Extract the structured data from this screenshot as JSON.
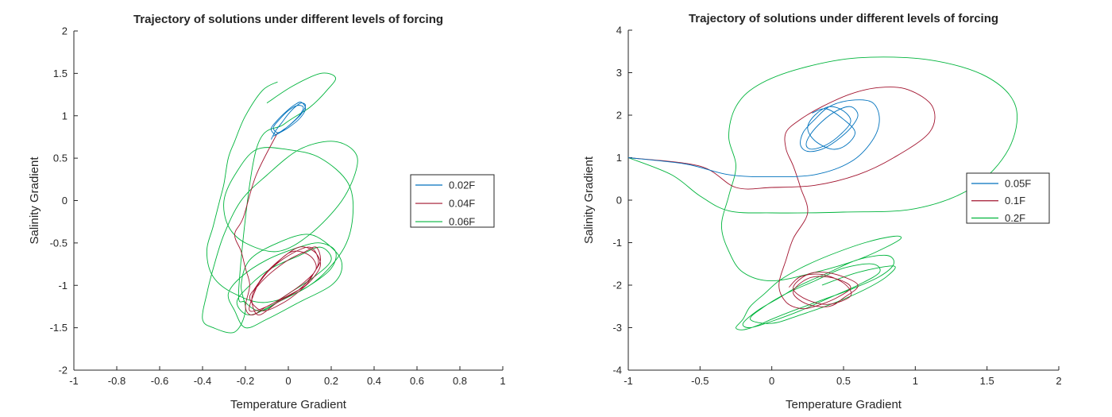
{
  "chart_data": [
    {
      "type": "line",
      "title": "Trajectory of solutions under different levels of forcing",
      "xlabel": "Temperature Gradient",
      "ylabel": "Salinity Gradient",
      "xlim": [
        -1,
        1
      ],
      "ylim": [
        -2,
        2
      ],
      "xticks": [
        -1,
        -0.8,
        -0.6,
        -0.4,
        -0.2,
        0,
        0.2,
        0.4,
        0.6,
        0.8,
        1
      ],
      "yticks": [
        -2,
        -1.5,
        -1,
        -0.5,
        0,
        0.5,
        1,
        1.5,
        2
      ],
      "grid": false,
      "legend_position": "right",
      "series": [
        {
          "name": "0.02F",
          "color": "#0072BD",
          "x": [
            -0.08,
            -0.06,
            -0.03,
            0.0,
            0.03,
            0.06,
            0.08,
            0.06,
            0.02,
            -0.02,
            -0.05,
            -0.07,
            -0.04,
            0.0,
            0.04,
            0.07,
            0.05,
            0.01,
            -0.03,
            -0.06,
            -0.08,
            -0.05,
            -0.01,
            0.03,
            0.06,
            0.08,
            0.05,
            0.0,
            -0.04,
            -0.07
          ],
          "y": [
            0.72,
            0.82,
            0.92,
            1.02,
            1.1,
            1.15,
            1.12,
            1.02,
            0.92,
            0.84,
            0.8,
            0.86,
            0.96,
            1.06,
            1.12,
            1.1,
            1.0,
            0.9,
            0.82,
            0.78,
            0.85,
            0.95,
            1.05,
            1.13,
            1.16,
            1.08,
            0.96,
            0.86,
            0.8,
            0.76
          ]
        },
        {
          "name": "0.04F",
          "color": "#A2142F",
          "x": [
            -0.05,
            -0.15,
            -0.21,
            -0.25,
            -0.22,
            -0.2,
            -0.18,
            -0.2,
            -0.17,
            -0.1,
            0.0,
            0.08,
            0.12,
            0.15,
            0.13,
            0.08,
            0.0,
            -0.08,
            -0.14,
            -0.18,
            -0.12,
            -0.02,
            0.06,
            0.12,
            0.15,
            0.12,
            0.05,
            -0.04,
            -0.12,
            -0.16,
            -0.18,
            -0.1,
            0.0,
            0.08,
            0.13,
            0.1,
            0.02,
            -0.06,
            -0.13,
            -0.17,
            -0.14,
            -0.05,
            0.05,
            0.12,
            0.14,
            0.1,
            0.0,
            -0.1,
            -0.16
          ],
          "y": [
            0.8,
            0.3,
            -0.2,
            -0.4,
            -0.6,
            -0.8,
            -1.0,
            -1.25,
            -1.35,
            -1.25,
            -1.12,
            -1.0,
            -0.85,
            -0.7,
            -0.55,
            -0.6,
            -0.7,
            -0.85,
            -1.0,
            -1.15,
            -1.3,
            -1.2,
            -1.05,
            -0.9,
            -0.75,
            -0.6,
            -0.55,
            -0.7,
            -0.9,
            -1.1,
            -1.3,
            -1.25,
            -1.1,
            -0.95,
            -0.8,
            -0.65,
            -0.6,
            -0.75,
            -0.95,
            -1.15,
            -1.35,
            -1.2,
            -1.05,
            -0.85,
            -0.7,
            -0.55,
            -0.65,
            -0.85,
            -1.05
          ]
        },
        {
          "name": "0.06F",
          "color": "#00B43C",
          "x": [
            -0.05,
            -0.12,
            -0.2,
            -0.25,
            -0.28,
            -0.3,
            -0.32,
            -0.35,
            -0.38,
            -0.35,
            -0.25,
            -0.1,
            0.1,
            0.25,
            0.3,
            0.28,
            0.15,
            0.0,
            -0.15,
            -0.25,
            -0.3,
            -0.28,
            -0.2,
            -0.05,
            0.1,
            0.25,
            0.32,
            0.3,
            0.2,
            0.05,
            -0.1,
            -0.22,
            -0.3,
            -0.35,
            -0.38,
            -0.4,
            -0.35,
            -0.25,
            -0.2,
            -0.22,
            -0.18,
            -0.05,
            0.1,
            0.22,
            0.25,
            0.2,
            0.05,
            -0.1,
            -0.2,
            -0.25,
            -0.28,
            -0.22,
            -0.1,
            0.05,
            0.15,
            0.22,
            0.2,
            0.1,
            -0.05,
            -0.18,
            -0.24,
            -0.18,
            -0.08,
            0.05,
            0.15,
            0.2,
            0.12,
            0.0,
            -0.12,
            -0.2,
            -0.23,
            -0.15,
            -0.02,
            0.1,
            0.18,
            0.22,
            0.15,
            0.02,
            -0.1
          ],
          "y": [
            1.4,
            1.3,
            1.0,
            0.7,
            0.5,
            0.2,
            0.0,
            -0.3,
            -0.6,
            -0.9,
            -1.1,
            -1.2,
            -1.0,
            -0.6,
            -0.2,
            0.2,
            0.5,
            0.6,
            0.6,
            0.3,
            0.0,
            -0.3,
            -0.5,
            -0.6,
            -0.4,
            0.0,
            0.4,
            0.6,
            0.7,
            0.6,
            0.3,
            0.0,
            -0.4,
            -0.8,
            -1.1,
            -1.4,
            -1.5,
            -1.55,
            -1.3,
            -1.0,
            -0.7,
            -0.5,
            -0.4,
            -0.6,
            -0.8,
            -1.0,
            -1.2,
            -1.4,
            -1.5,
            -1.3,
            -1.1,
            -0.9,
            -0.7,
            -0.55,
            -0.5,
            -0.6,
            -0.8,
            -1.0,
            -1.2,
            -1.35,
            -1.2,
            -1.0,
            -0.8,
            -0.65,
            -0.55,
            -0.7,
            -0.9,
            -1.1,
            -1.3,
            -1.2,
            -1.0,
            0.6,
            0.9,
            1.1,
            1.3,
            1.45,
            1.5,
            1.35,
            1.15
          ]
        }
      ]
    },
    {
      "type": "line",
      "title": "Trajectory of solutions under different levels of forcing",
      "xlabel": "Temperature Gradient",
      "ylabel": "Salinity Gradient",
      "xlim": [
        -1,
        2
      ],
      "ylim": [
        -4,
        4
      ],
      "xticks": [
        -1,
        -0.5,
        0,
        0.5,
        1,
        1.5,
        2
      ],
      "yticks": [
        -4,
        -3,
        -2,
        -1,
        0,
        1,
        2,
        3,
        4
      ],
      "grid": false,
      "legend_position": "right",
      "series": [
        {
          "name": "0.05F",
          "color": "#0072BD",
          "x": [
            -1.0,
            -0.6,
            -0.3,
            0.0,
            0.3,
            0.55,
            0.7,
            0.75,
            0.7,
            0.55,
            0.4,
            0.3,
            0.22,
            0.2,
            0.25,
            0.35,
            0.45,
            0.55,
            0.6,
            0.55,
            0.45,
            0.35,
            0.27,
            0.24,
            0.28,
            0.38,
            0.48,
            0.55,
            0.5,
            0.4,
            0.3,
            0.25,
            0.3,
            0.42,
            0.52,
            0.58,
            0.5,
            0.38,
            0.28
          ],
          "y": [
            1.0,
            0.85,
            0.6,
            0.55,
            0.6,
            0.9,
            1.4,
            1.9,
            2.3,
            2.35,
            2.2,
            1.9,
            1.6,
            1.3,
            1.15,
            1.2,
            1.4,
            1.7,
            2.0,
            2.2,
            2.1,
            1.85,
            1.55,
            1.3,
            1.2,
            1.3,
            1.55,
            1.85,
            2.1,
            2.2,
            2.0,
            1.7,
            1.4,
            1.2,
            1.3,
            1.6,
            1.9,
            2.15,
            2.05
          ]
        },
        {
          "name": "0.1F",
          "color": "#A2142F",
          "x": [
            -1.0,
            -0.5,
            -0.25,
            0.0,
            0.3,
            0.6,
            0.85,
            1.1,
            1.12,
            0.95,
            0.75,
            0.55,
            0.35,
            0.2,
            0.1,
            0.1,
            0.15,
            0.2,
            0.25,
            0.15,
            0.1,
            0.05,
            0.1,
            0.2,
            0.3,
            0.45,
            0.55,
            0.45,
            0.3,
            0.2,
            0.15,
            0.25,
            0.4,
            0.5,
            0.6,
            0.45,
            0.3,
            0.2,
            0.15,
            0.25,
            0.4,
            0.55,
            0.5,
            0.35,
            0.2,
            0.12
          ],
          "y": [
            1.0,
            0.8,
            0.3,
            0.3,
            0.35,
            0.6,
            1.0,
            1.6,
            2.2,
            2.6,
            2.65,
            2.5,
            2.2,
            1.9,
            1.6,
            1.2,
            0.8,
            0.3,
            -0.3,
            -0.9,
            -1.4,
            -2.0,
            -2.4,
            -2.55,
            -2.5,
            -2.3,
            -2.05,
            -1.85,
            -1.8,
            -1.95,
            -2.2,
            -2.45,
            -2.5,
            -2.3,
            -2.0,
            -1.75,
            -1.7,
            -1.85,
            -2.1,
            -2.35,
            -2.45,
            -2.25,
            -1.95,
            -1.75,
            -1.8,
            -2.05
          ]
        },
        {
          "name": "0.2F",
          "color": "#00B43C",
          "x": [
            -1.0,
            -0.7,
            -0.5,
            -0.3,
            0.0,
            0.5,
            1.0,
            1.4,
            1.65,
            1.7,
            1.5,
            1.1,
            0.6,
            0.2,
            -0.1,
            -0.25,
            -0.3,
            -0.25,
            -0.3,
            -0.35,
            -0.3,
            -0.2,
            0.0,
            0.3,
            0.6,
            0.8,
            0.9,
            0.85,
            0.65,
            0.4,
            0.2,
            0.05,
            -0.05,
            -0.15,
            -0.2,
            -0.25,
            -0.2,
            -0.1,
            0.0,
            0.15,
            0.35,
            0.55,
            0.75,
            0.85,
            0.8,
            0.6,
            0.4,
            0.2,
            0.05,
            -0.1,
            -0.2,
            -0.15,
            0.0,
            0.2,
            0.4,
            0.6,
            0.75,
            0.7,
            0.5,
            0.3,
            0.1,
            -0.05,
            -0.15,
            0.0,
            0.2,
            0.45,
            0.65,
            0.8,
            0.85,
            0.6,
            0.35
          ],
          "y": [
            1.0,
            0.6,
            0.1,
            -0.25,
            -0.3,
            -0.28,
            -0.2,
            0.3,
            1.2,
            2.2,
            2.9,
            3.3,
            3.35,
            3.1,
            2.7,
            2.2,
            1.5,
            0.8,
            0.1,
            -0.6,
            -1.2,
            -1.7,
            -1.9,
            -1.7,
            -1.4,
            -1.1,
            -0.9,
            -0.85,
            -1.0,
            -1.3,
            -1.6,
            -1.9,
            -2.2,
            -2.5,
            -2.8,
            -3.0,
            -3.05,
            -2.95,
            -2.8,
            -2.6,
            -2.35,
            -2.1,
            -1.8,
            -1.5,
            -1.3,
            -1.4,
            -1.7,
            -2.0,
            -2.3,
            -2.6,
            -2.9,
            -3.0,
            -2.85,
            -2.6,
            -2.3,
            -2.0,
            -1.7,
            -1.5,
            -1.6,
            -1.9,
            -2.2,
            -2.5,
            -2.8,
            -2.9,
            -2.7,
            -2.4,
            -2.1,
            -1.8,
            -1.55,
            -1.7,
            -2.0
          ]
        }
      ]
    }
  ]
}
